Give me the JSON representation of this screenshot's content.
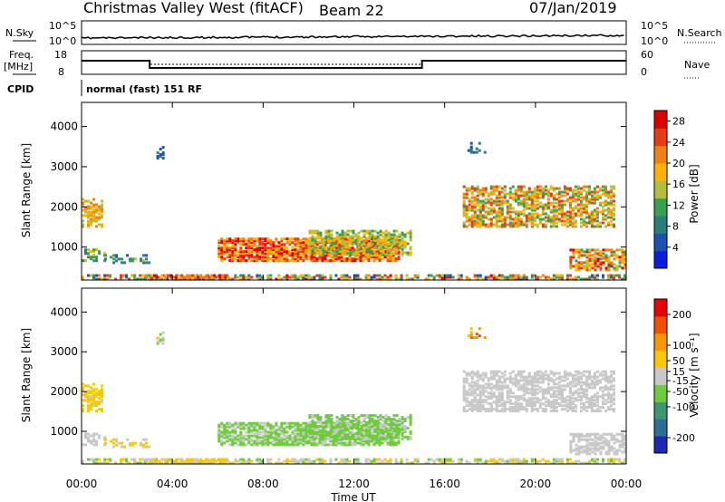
{
  "header": {
    "station": "Christmas Valley West (fitACF)",
    "beam": "Beam 22",
    "date": "07/Jan/2019"
  },
  "top_panels": {
    "nsky_label": "N.Sky",
    "nsearch_label": "N.Search",
    "noise_tick_top": "10^5",
    "noise_tick_bottom": "10^0",
    "freq_label": "Freq.",
    "freq_unit": "[MHz]",
    "freq_ticks": [
      "18",
      "8"
    ],
    "nave_label": "Nave",
    "nave_ticks": [
      "60",
      "0"
    ],
    "cpid_label": "CPID",
    "cpid_text": "normal (fast) 151 RF"
  },
  "chart_data": [
    {
      "type": "heatmap",
      "name": "power",
      "ylabel": "Slant Range [km]",
      "xlabel": "",
      "yticks": [
        "1000",
        "2000",
        "3000",
        "4000"
      ],
      "ylim": [
        180,
        4600
      ],
      "colorbar": {
        "label": "Power [dB]",
        "ticks": [
          "4",
          "8",
          "12",
          "16",
          "20",
          "24",
          "28"
        ],
        "range": [
          0,
          30
        ],
        "colors": [
          "#0a1ee0",
          "#1e50b4",
          "#2d7d7d",
          "#3aa050",
          "#b4be3c",
          "#fab400",
          "#f08214",
          "#e63c14",
          "#dc0000"
        ]
      }
    },
    {
      "type": "heatmap",
      "name": "velocity",
      "ylabel": "Slant Range [km]",
      "xlabel": "Time UT",
      "yticks": [
        "1000",
        "2000",
        "3000",
        "4000"
      ],
      "ylim": [
        180,
        4600
      ],
      "xticks": [
        "00:00",
        "04:00",
        "08:00",
        "12:00",
        "16:00",
        "20:00",
        "00:00"
      ],
      "xlim": [
        0,
        24
      ],
      "colorbar": {
        "label": "Velocity [m s⁻¹]",
        "ticks": [
          "200",
          "100",
          "50",
          "15",
          "-15",
          "-50",
          "-100",
          "-200"
        ],
        "range": [
          -250,
          250
        ],
        "colors": [
          "#1e28b4",
          "#2d6e96",
          "#3c966e",
          "#6ecb3c",
          "#c8c8c8",
          "#fac800",
          "#fa9600",
          "#f05000",
          "#e60000"
        ]
      }
    }
  ]
}
